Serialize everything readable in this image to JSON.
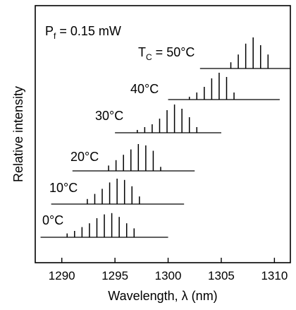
{
  "chart_data": {
    "type": "bar",
    "title": "",
    "xlabel": "Wavelength, λ (nm)",
    "ylabel": "Relative intensity",
    "xlim": [
      1287.5,
      1311.5
    ],
    "x_ticks": [
      1290,
      1295,
      1300,
      1305,
      1310
    ],
    "x_tick_labels": [
      "1290",
      "1295",
      "1300",
      "1305",
      "1310"
    ],
    "grid": false,
    "legend": "none",
    "annotations": [
      {
        "text_main": "P",
        "text_sub": "f",
        "text_rest": " = 0.15 mW"
      }
    ],
    "series": [
      {
        "name": "0°C",
        "label_prefix": "",
        "baseline_range": [
          1288.0,
          1300.0
        ],
        "x": [
          1290.5,
          1291.2,
          1291.9,
          1292.6,
          1293.3,
          1294.0,
          1294.7,
          1295.4,
          1296.1,
          1296.8
        ],
        "values": [
          0.15,
          0.25,
          0.4,
          0.55,
          0.75,
          0.9,
          0.95,
          0.8,
          0.55,
          0.35
        ]
      },
      {
        "name": "10°C",
        "label_prefix": "",
        "baseline_range": [
          1289.0,
          1301.5
        ],
        "x": [
          1292.4,
          1293.1,
          1293.8,
          1294.5,
          1295.2,
          1295.9,
          1296.6,
          1297.3
        ],
        "values": [
          0.2,
          0.4,
          0.6,
          0.85,
          1.0,
          0.95,
          0.7,
          0.3
        ]
      },
      {
        "name": "20°C",
        "label_prefix": "",
        "baseline_range": [
          1291.0,
          1302.5
        ],
        "x": [
          1294.4,
          1295.1,
          1295.8,
          1296.5,
          1297.2,
          1297.9,
          1298.6,
          1299.3
        ],
        "values": [
          0.2,
          0.4,
          0.6,
          0.8,
          1.0,
          0.95,
          0.75,
          0.15
        ]
      },
      {
        "name": "30°C",
        "label_prefix": "",
        "baseline_range": [
          1295.0,
          1305.0
        ],
        "x": [
          1297.1,
          1297.8,
          1298.5,
          1299.2,
          1299.9,
          1300.6,
          1301.3,
          1302.0,
          1302.7
        ],
        "values": [
          0.1,
          0.2,
          0.3,
          0.5,
          0.8,
          1.0,
          0.85,
          0.55,
          0.2
        ]
      },
      {
        "name": "40°C",
        "label_prefix": "",
        "baseline_range": [
          1300.0,
          1310.5
        ],
        "x": [
          1302.0,
          1302.7,
          1303.4,
          1304.1,
          1304.8,
          1305.5,
          1306.2
        ],
        "values": [
          0.1,
          0.25,
          0.45,
          0.75,
          0.95,
          0.8,
          0.25
        ]
      },
      {
        "name": "50°C",
        "label_prefix": "T",
        "label_prefix_sub": "C",
        "label_prefix_rest": " = ",
        "baseline_range": [
          1303.0,
          1311.5
        ],
        "x": [
          1305.9,
          1306.6,
          1307.3,
          1308.0,
          1308.7,
          1309.4
        ],
        "values": [
          0.2,
          0.45,
          0.8,
          1.0,
          0.75,
          0.45
        ]
      }
    ]
  }
}
